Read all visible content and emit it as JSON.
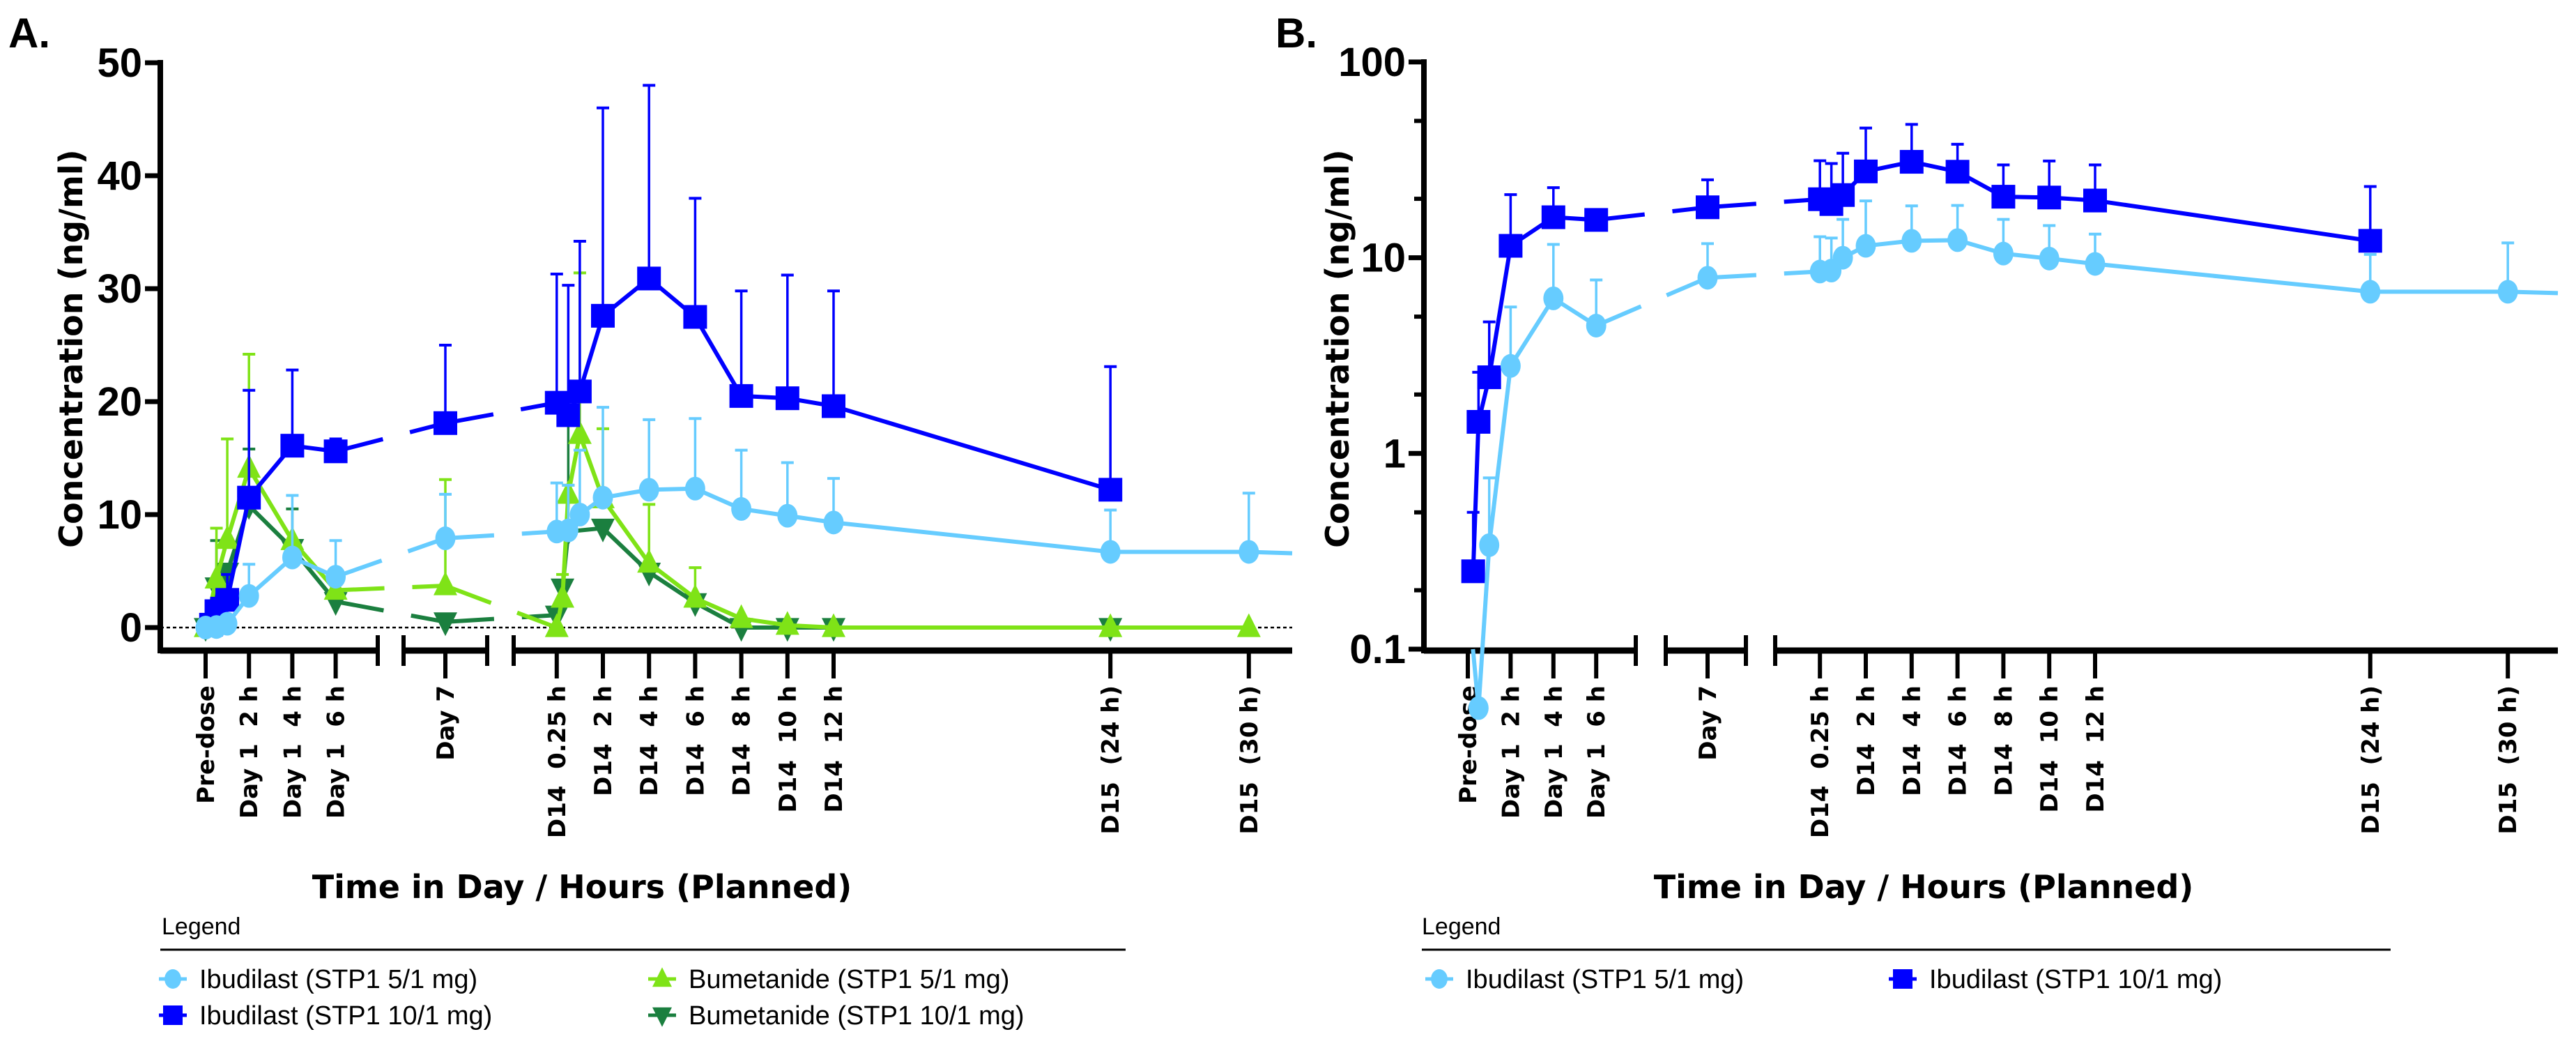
{
  "chart_data": [
    {
      "panel_label": "A.",
      "type": "line",
      "ylabel": "Concentration (ng/ml)",
      "xlabel": "Time in Day / Hours (Planned)",
      "yscale": "linear",
      "ylim": [
        0,
        50
      ],
      "yticks": [
        "0",
        "10",
        "20",
        "30",
        "40",
        "50"
      ],
      "reference_line": {
        "y": 0,
        "style": "dotted"
      },
      "error_bars": "upper SD",
      "x_tick_labels": [
        {
          "label": "Pre-dose",
          "period": "Day 1",
          "hour": 0
        },
        {
          "label": "Day 1  2 h",
          "period": "Day 1",
          "hour": 2
        },
        {
          "label": "Day 1  4 h",
          "period": "Day 1",
          "hour": 4
        },
        {
          "label": "Day 1  6 h",
          "period": "Day 1",
          "hour": 6
        },
        {
          "label": "Day 7",
          "period": "Day 7",
          "hour": 0
        },
        {
          "label": "D14  0.25 h",
          "period": "D14",
          "hour": 0.25
        },
        {
          "label": "D14  2 h",
          "period": "D14",
          "hour": 2
        },
        {
          "label": "D14  4 h",
          "period": "D14",
          "hour": 4
        },
        {
          "label": "D14  6 h",
          "period": "D14",
          "hour": 6
        },
        {
          "label": "D14  8 h",
          "period": "D14",
          "hour": 8
        },
        {
          "label": "D14  10 h",
          "period": "D14",
          "hour": 10
        },
        {
          "label": "D14  12 h",
          "period": "D14",
          "hour": 12
        },
        {
          "label": "D15  (24 h)",
          "period": "D14",
          "hour": 24
        },
        {
          "label": "D15  (30 h)",
          "period": "D14",
          "hour": 30
        }
      ],
      "legend_title": "Legend",
      "legend_placement": "bottom",
      "series": [
        {
          "name": "Ibudilast (STP1 5/1 mg)",
          "color": "#66CCFF",
          "marker": "circle",
          "points": [
            {
              "period": "Day 1",
              "hour": 0,
              "value": 0
            },
            {
              "period": "Day 1",
              "hour": 0.5,
              "value": 0.05
            },
            {
              "period": "Day 1",
              "hour": 1,
              "value": 0.34,
              "sd": 0.75
            },
            {
              "period": "Day 1",
              "hour": 2,
              "value": 2.8,
              "sd": 5.6
            },
            {
              "period": "Day 1",
              "hour": 4,
              "value": 6.2,
              "sd": 11.7
            },
            {
              "period": "Day 1",
              "hour": 6,
              "value": 4.5,
              "sd": 7.7
            },
            {
              "period": "Day 7",
              "hour": 0,
              "value": 7.9,
              "sd": 11.8
            },
            {
              "period": "D14",
              "hour": 0,
              "value": 8.5,
              "sd": 12.8
            },
            {
              "period": "D14",
              "hour": 0.5,
              "value": 8.6,
              "sd": 12.6
            },
            {
              "period": "D14",
              "hour": 1,
              "value": 10.0,
              "sd": 15.7
            },
            {
              "period": "D14",
              "hour": 2,
              "value": 11.5,
              "sd": 19.5
            },
            {
              "period": "D14",
              "hour": 4,
              "value": 12.2,
              "sd": 18.4
            },
            {
              "period": "D14",
              "hour": 6,
              "value": 12.3,
              "sd": 18.5
            },
            {
              "period": "D14",
              "hour": 8,
              "value": 10.5,
              "sd": 15.7
            },
            {
              "period": "D14",
              "hour": 10,
              "value": 9.9,
              "sd": 14.6
            },
            {
              "period": "D14",
              "hour": 12,
              "value": 9.3,
              "sd": 13.2
            },
            {
              "period": "D14",
              "hour": 24,
              "value": 6.7,
              "sd": 10.4
            },
            {
              "period": "D14",
              "hour": 30,
              "value": 6.7,
              "sd": 11.9
            }
          ]
        },
        {
          "name": "Ibudilast (STP1 10/1 mg)",
          "color": "#0000FF",
          "marker": "square",
          "points": [
            {
              "period": "Day 1",
              "hour": 0.25,
              "value": 0.25,
              "sd": 0.5
            },
            {
              "period": "Day 1",
              "hour": 0.5,
              "value": 1.45,
              "sd": 2.6
            },
            {
              "period": "Day 1",
              "hour": 1,
              "value": 2.45,
              "sd": 4.7
            },
            {
              "period": "Day 1",
              "hour": 2,
              "value": 11.5,
              "sd": 21
            },
            {
              "period": "Day 1",
              "hour": 4,
              "value": 16.1,
              "sd": 22.8
            },
            {
              "period": "Day 1",
              "hour": 6,
              "value": 15.6,
              "sd": 16.7
            },
            {
              "period": "Day 7",
              "hour": 0,
              "value": 18.1,
              "sd": 25
            },
            {
              "period": "D14",
              "hour": 0,
              "value": 19.9,
              "sd": 31.3
            },
            {
              "period": "D14",
              "hour": 0.5,
              "value": 18.8,
              "sd": 30.3
            },
            {
              "period": "D14",
              "hour": 1,
              "value": 20.9,
              "sd": 34.2
            },
            {
              "period": "D14",
              "hour": 2,
              "value": 27.6,
              "sd": 46
            },
            {
              "period": "D14",
              "hour": 4,
              "value": 30.9,
              "sd": 48
            },
            {
              "period": "D14",
              "hour": 6,
              "value": 27.5,
              "sd": 38
            },
            {
              "period": "D14",
              "hour": 8,
              "value": 20.5,
              "sd": 29.8
            },
            {
              "period": "D14",
              "hour": 10,
              "value": 20.3,
              "sd": 31.2
            },
            {
              "period": "D14",
              "hour": 12,
              "value": 19.6,
              "sd": 29.8
            },
            {
              "period": "D14",
              "hour": 24,
              "value": 12.2,
              "sd": 23.1
            }
          ]
        },
        {
          "name": "Bumetanide (STP1 5/1 mg)",
          "color": "#7FE317",
          "marker": "triangle-up",
          "points": [
            {
              "period": "Day 1",
              "hour": 0,
              "value": 0
            },
            {
              "period": "Day 1",
              "hour": 0.5,
              "value": 4.3,
              "sd": 8.8
            },
            {
              "period": "Day 1",
              "hour": 1,
              "value": 7.8,
              "sd": 16.7
            },
            {
              "period": "Day 1",
              "hour": 2,
              "value": 14.1,
              "sd": 24.2
            },
            {
              "period": "Day 1",
              "hour": 4,
              "value": 7.7
            },
            {
              "period": "Day 1",
              "hour": 6,
              "value": 3.3
            },
            {
              "period": "Day 7",
              "hour": 0,
              "value": 3.7,
              "sd": 13.1
            },
            {
              "period": "D14",
              "hour": 0,
              "value": 0
            },
            {
              "period": "D14",
              "hour": 0.25,
              "value": 2.6,
              "sd": 4.7
            },
            {
              "period": "D14",
              "hour": 0.5,
              "value": 11.8,
              "sd": 12.6
            },
            {
              "period": "D14",
              "hour": 1,
              "value": 17.1,
              "sd": 31.4
            },
            {
              "period": "D14",
              "hour": 2,
              "value": 11.4,
              "sd": 17.6
            },
            {
              "period": "D14",
              "hour": 4,
              "value": 5.7,
              "sd": 10.9
            },
            {
              "period": "D14",
              "hour": 6,
              "value": 2.6,
              "sd": 5.3
            },
            {
              "period": "D14",
              "hour": 8,
              "value": 0.8
            },
            {
              "period": "D14",
              "hour": 10,
              "value": 0.2
            },
            {
              "period": "D14",
              "hour": 12,
              "value": 0
            },
            {
              "period": "D14",
              "hour": 24,
              "value": 0
            },
            {
              "period": "D14",
              "hour": 30,
              "value": 0
            }
          ]
        },
        {
          "name": "Bumetanide (STP1 10/1 mg)",
          "color": "#1B7F3F",
          "marker": "triangle-down",
          "points": [
            {
              "period": "Day 1",
              "hour": 0,
              "value": 0
            },
            {
              "period": "Day 1",
              "hour": 0.5,
              "value": 3.6,
              "sd": 7.7
            },
            {
              "period": "Day 1",
              "hour": 1,
              "value": 4.9
            },
            {
              "period": "Day 1",
              "hour": 2,
              "value": 10.8,
              "sd": 15.8
            },
            {
              "period": "Day 1",
              "hour": 4,
              "value": 7.0,
              "sd": 10.5
            },
            {
              "period": "Day 1",
              "hour": 6,
              "value": 2.3
            },
            {
              "period": "Day 7",
              "hour": 0,
              "value": 0.5
            },
            {
              "period": "D14",
              "hour": 0,
              "value": 1.1
            },
            {
              "period": "D14",
              "hour": 0.25,
              "value": 3.5
            },
            {
              "period": "D14",
              "hour": 0.5,
              "value": 8.5,
              "sd": 18.5
            },
            {
              "period": "D14",
              "hour": 2,
              "value": 8.8
            },
            {
              "period": "D14",
              "hour": 4,
              "value": 4.9
            },
            {
              "period": "D14",
              "hour": 6,
              "value": 2.2
            },
            {
              "period": "D14",
              "hour": 8,
              "value": 0
            },
            {
              "period": "D14",
              "hour": 10,
              "value": 0
            },
            {
              "period": "D14",
              "hour": 12,
              "value": 0
            },
            {
              "period": "D14",
              "hour": 24,
              "value": 0
            }
          ]
        }
      ]
    },
    {
      "panel_label": "B.",
      "type": "line",
      "ylabel": "Concentration (ng/ml)",
      "xlabel": "Time in Day / Hours (Planned)",
      "yscale": "log",
      "ylim": [
        0.1,
        100
      ],
      "yticks": [
        "0.1",
        "1",
        "10",
        "100"
      ],
      "error_bars": "upper SD",
      "x_tick_labels": [
        {
          "label": "Pre-dose",
          "period": "Day 1",
          "hour": 0
        },
        {
          "label": "Day 1  2 h",
          "period": "Day 1",
          "hour": 2
        },
        {
          "label": "Day 1  4 h",
          "period": "Day 1",
          "hour": 4
        },
        {
          "label": "Day 1  6 h",
          "period": "Day 1",
          "hour": 6
        },
        {
          "label": "Day 7",
          "period": "Day 7",
          "hour": 0
        },
        {
          "label": "D14  0.25 h",
          "period": "D14",
          "hour": 0.25
        },
        {
          "label": "D14  2 h",
          "period": "D14",
          "hour": 2
        },
        {
          "label": "D14  4 h",
          "period": "D14",
          "hour": 4
        },
        {
          "label": "D14  6 h",
          "period": "D14",
          "hour": 6
        },
        {
          "label": "D14  8 h",
          "period": "D14",
          "hour": 8
        },
        {
          "label": "D14  10 h",
          "period": "D14",
          "hour": 10
        },
        {
          "label": "D14  12 h",
          "period": "D14",
          "hour": 12
        },
        {
          "label": "D15  (24 h)",
          "period": "D14",
          "hour": 24
        },
        {
          "label": "D15  (30 h)",
          "period": "D14",
          "hour": 30
        }
      ],
      "legend_title": "Legend",
      "legend_placement": "bottom",
      "series_ref": [
        0,
        1
      ]
    }
  ]
}
